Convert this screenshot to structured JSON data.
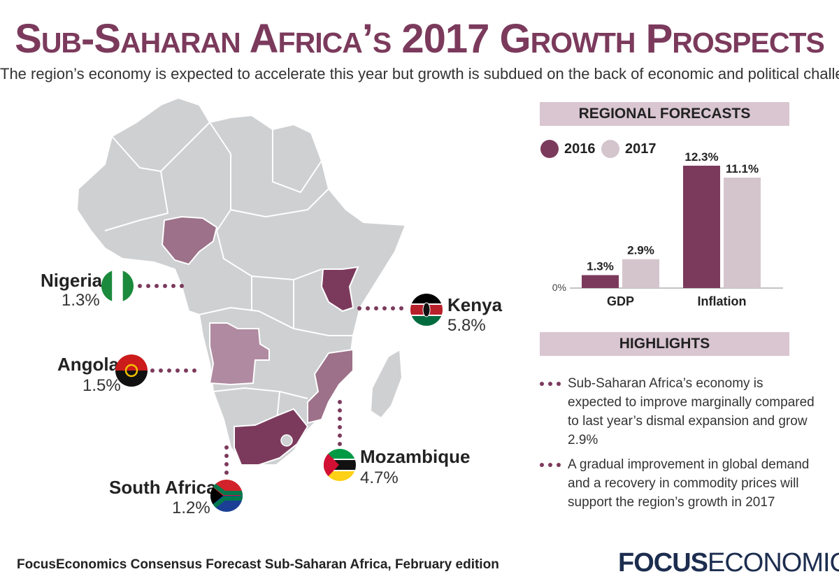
{
  "header": {
    "title": "Sub-Saharan Africa’s 2017 Growth Prospects",
    "subtitle": "The region’s economy is expected to accelerate this year but growth is subdued on the back of economic and political challenges"
  },
  "map": {
    "countries": [
      {
        "name": "Nigeria",
        "value": "1.3%"
      },
      {
        "name": "Angola",
        "value": "1.5%"
      },
      {
        "name": "South Africa",
        "value": "1.2%"
      },
      {
        "name": "Kenya",
        "value": "5.8%"
      },
      {
        "name": "Mozambique",
        "value": "4.7%"
      }
    ]
  },
  "forecasts": {
    "section_title": "REGIONAL FORECASTS",
    "legend": [
      "2016",
      "2017"
    ]
  },
  "chart_data": {
    "type": "bar",
    "categories": [
      "GDP",
      "Inflation"
    ],
    "series": [
      {
        "name": "2016",
        "values": [
          1.3,
          12.3
        ],
        "labels": [
          "1.3%",
          "12.3%"
        ],
        "color": "#7b3a5c"
      },
      {
        "name": "2017",
        "values": [
          2.9,
          11.1
        ],
        "labels": [
          "2.9%",
          "11.1%"
        ],
        "color": "#d4c5cd"
      }
    ],
    "y_baseline_label": "0%",
    "ylim": [
      0,
      12.3
    ],
    "grid": false,
    "legend_position": "top-left"
  },
  "highlights": {
    "section_title": "HIGHLIGHTS",
    "items": [
      "Sub-Saharan Africa’s economy is expected to improve marginally compared to last year’s dismal expansion and grow 2.9%",
      "A gradual improvement in global demand and a recovery in commodity prices will support the region’s growth in 2017"
    ]
  },
  "footer": {
    "source": "FocusEconomics Consensus Forecast Sub-Saharan Africa, February edition",
    "brand_bold": "FOCUS",
    "brand_light": "ECONOMICS"
  },
  "colors": {
    "accent": "#7b3a5c",
    "light_accent": "#d4c5cd",
    "highlighted_country": "#8a5474",
    "map_gray": "#cfd0d2",
    "brand": "#1c2d4f"
  }
}
